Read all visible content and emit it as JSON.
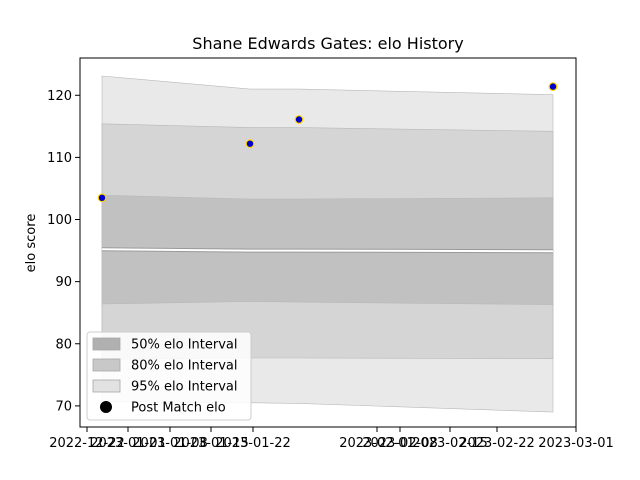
{
  "chart_data": {
    "type": "line",
    "title": "Shane Edwards Gates: elo History",
    "xlabel": "",
    "ylabel": "elo score",
    "x_ticks": [
      "2022-12-22",
      "2023-01-01",
      "2023-01-08",
      "2023-01-15",
      "2023-01-22",
      "2023-02-01",
      "2023-02-08",
      "2023-02-15",
      "2023-02-22",
      "2023-03-01"
    ],
    "y_ticks": [
      70,
      80,
      90,
      100,
      110,
      120
    ],
    "ylim": [
      66.6,
      126
    ],
    "xlim": [
      "2022-12-20",
      "2023-03-01"
    ],
    "x": [
      "2022-12-22",
      "2023-01-13",
      "2023-01-20",
      "2023-02-26"
    ],
    "series": [
      {
        "name": "Post Match elo",
        "values": [
          103.5,
          112.2,
          116.1,
          121.4
        ],
        "marker_color": "#0000cc",
        "edge_color": "#ffd700"
      }
    ],
    "intervals": [
      {
        "name": "95% elo Interval",
        "upper": [
          123.1,
          121.0,
          121.0,
          120.1
        ],
        "lower": [
          70.7,
          70.5,
          70.4,
          69.0
        ],
        "color": "#e5e5e5"
      },
      {
        "name": "80% elo Interval",
        "upper": [
          115.4,
          114.8,
          114.8,
          114.2
        ],
        "lower": [
          77.5,
          77.7,
          77.7,
          77.6
        ],
        "color": "#d1d1d1"
      },
      {
        "name": "50% elo Interval",
        "upper": [
          103.9,
          103.3,
          103.3,
          103.5
        ],
        "lower": [
          86.4,
          86.8,
          86.7,
          86.3
        ],
        "color": "#bdbdbd"
      }
    ],
    "mean_line": {
      "values": [
        95.2,
        95.0,
        95.0,
        94.9
      ],
      "color": "#ffffff"
    },
    "legend": {
      "placement": "lower-left",
      "entries": [
        "50% elo Interval",
        "80% elo Interval",
        "95% elo Interval",
        "Post Match elo"
      ]
    },
    "grid": false
  }
}
